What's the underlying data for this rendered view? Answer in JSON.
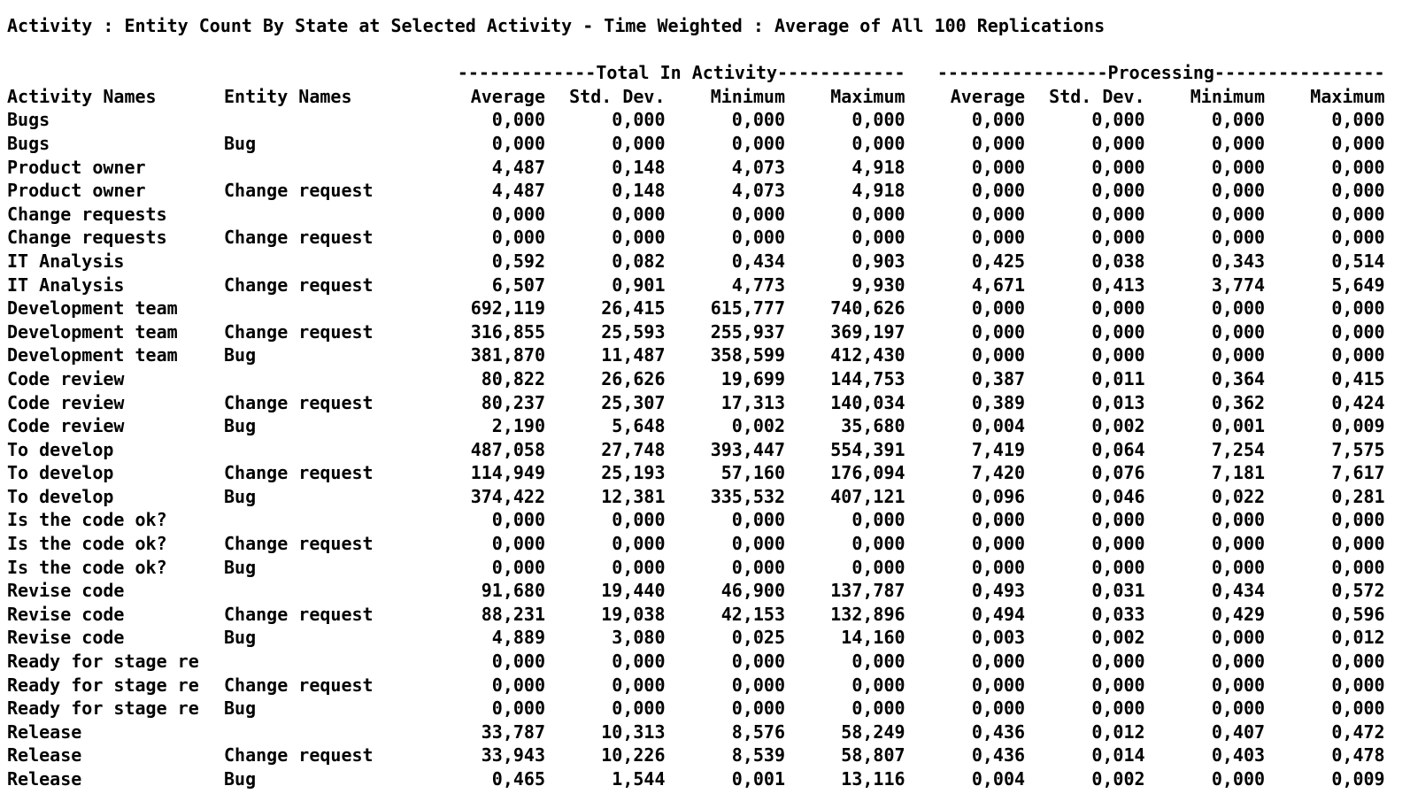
{
  "colors": {
    "background": "#ffffff",
    "text": "#000000"
  },
  "title": "Activity : Entity Count By State at Selected Activity - Time Weighted : Average of All 100 Replications",
  "table": {
    "group_headers": {
      "total_in_activity": "-------------Total In Activity------------",
      "processing": "----------------Processing----------------"
    },
    "columns": {
      "activity": "Activity Names",
      "entity": "Entity Names",
      "stats": [
        "Average",
        "Std. Dev.",
        "Minimum",
        "Maximum"
      ]
    },
    "rows": [
      {
        "activity": "Bugs",
        "entity": "",
        "total": [
          "0,000",
          "0,000",
          "0,000",
          "0,000"
        ],
        "processing": [
          "0,000",
          "0,000",
          "0,000",
          "0,000"
        ]
      },
      {
        "activity": "Bugs",
        "entity": "Bug",
        "total": [
          "0,000",
          "0,000",
          "0,000",
          "0,000"
        ],
        "processing": [
          "0,000",
          "0,000",
          "0,000",
          "0,000"
        ]
      },
      {
        "activity": "Product owner",
        "entity": "",
        "total": [
          "4,487",
          "0,148",
          "4,073",
          "4,918"
        ],
        "processing": [
          "0,000",
          "0,000",
          "0,000",
          "0,000"
        ]
      },
      {
        "activity": "Product owner",
        "entity": "Change request",
        "total": [
          "4,487",
          "0,148",
          "4,073",
          "4,918"
        ],
        "processing": [
          "0,000",
          "0,000",
          "0,000",
          "0,000"
        ]
      },
      {
        "activity": "Change requests",
        "entity": "",
        "total": [
          "0,000",
          "0,000",
          "0,000",
          "0,000"
        ],
        "processing": [
          "0,000",
          "0,000",
          "0,000",
          "0,000"
        ]
      },
      {
        "activity": "Change requests",
        "entity": "Change request",
        "total": [
          "0,000",
          "0,000",
          "0,000",
          "0,000"
        ],
        "processing": [
          "0,000",
          "0,000",
          "0,000",
          "0,000"
        ]
      },
      {
        "activity": "IT Analysis",
        "entity": "",
        "total": [
          "0,592",
          "0,082",
          "0,434",
          "0,903"
        ],
        "processing": [
          "0,425",
          "0,038",
          "0,343",
          "0,514"
        ]
      },
      {
        "activity": "IT Analysis",
        "entity": "Change request",
        "total": [
          "6,507",
          "0,901",
          "4,773",
          "9,930"
        ],
        "processing": [
          "4,671",
          "0,413",
          "3,774",
          "5,649"
        ]
      },
      {
        "activity": "Development team",
        "entity": "",
        "total": [
          "692,119",
          "26,415",
          "615,777",
          "740,626"
        ],
        "processing": [
          "0,000",
          "0,000",
          "0,000",
          "0,000"
        ]
      },
      {
        "activity": "Development team",
        "entity": "Change request",
        "total": [
          "316,855",
          "25,593",
          "255,937",
          "369,197"
        ],
        "processing": [
          "0,000",
          "0,000",
          "0,000",
          "0,000"
        ]
      },
      {
        "activity": "Development team",
        "entity": "Bug",
        "total": [
          "381,870",
          "11,487",
          "358,599",
          "412,430"
        ],
        "processing": [
          "0,000",
          "0,000",
          "0,000",
          "0,000"
        ]
      },
      {
        "activity": "Code review",
        "entity": "",
        "total": [
          "80,822",
          "26,626",
          "19,699",
          "144,753"
        ],
        "processing": [
          "0,387",
          "0,011",
          "0,364",
          "0,415"
        ]
      },
      {
        "activity": "Code review",
        "entity": "Change request",
        "total": [
          "80,237",
          "25,307",
          "17,313",
          "140,034"
        ],
        "processing": [
          "0,389",
          "0,013",
          "0,362",
          "0,424"
        ]
      },
      {
        "activity": "Code review",
        "entity": "Bug",
        "total": [
          "2,190",
          "5,648",
          "0,002",
          "35,680"
        ],
        "processing": [
          "0,004",
          "0,002",
          "0,001",
          "0,009"
        ]
      },
      {
        "activity": "To develop",
        "entity": "",
        "total": [
          "487,058",
          "27,748",
          "393,447",
          "554,391"
        ],
        "processing": [
          "7,419",
          "0,064",
          "7,254",
          "7,575"
        ]
      },
      {
        "activity": "To develop",
        "entity": "Change request",
        "total": [
          "114,949",
          "25,193",
          "57,160",
          "176,094"
        ],
        "processing": [
          "7,420",
          "0,076",
          "7,181",
          "7,617"
        ]
      },
      {
        "activity": "To develop",
        "entity": "Bug",
        "total": [
          "374,422",
          "12,381",
          "335,532",
          "407,121"
        ],
        "processing": [
          "0,096",
          "0,046",
          "0,022",
          "0,281"
        ]
      },
      {
        "activity": "Is the code ok?",
        "entity": "",
        "total": [
          "0,000",
          "0,000",
          "0,000",
          "0,000"
        ],
        "processing": [
          "0,000",
          "0,000",
          "0,000",
          "0,000"
        ]
      },
      {
        "activity": "Is the code ok?",
        "entity": "Change request",
        "total": [
          "0,000",
          "0,000",
          "0,000",
          "0,000"
        ],
        "processing": [
          "0,000",
          "0,000",
          "0,000",
          "0,000"
        ]
      },
      {
        "activity": "Is the code ok?",
        "entity": "Bug",
        "total": [
          "0,000",
          "0,000",
          "0,000",
          "0,000"
        ],
        "processing": [
          "0,000",
          "0,000",
          "0,000",
          "0,000"
        ]
      },
      {
        "activity": "Revise code",
        "entity": "",
        "total": [
          "91,680",
          "19,440",
          "46,900",
          "137,787"
        ],
        "processing": [
          "0,493",
          "0,031",
          "0,434",
          "0,572"
        ]
      },
      {
        "activity": "Revise code",
        "entity": "Change request",
        "total": [
          "88,231",
          "19,038",
          "42,153",
          "132,896"
        ],
        "processing": [
          "0,494",
          "0,033",
          "0,429",
          "0,596"
        ]
      },
      {
        "activity": "Revise code",
        "entity": "Bug",
        "total": [
          "4,889",
          "3,080",
          "0,025",
          "14,160"
        ],
        "processing": [
          "0,003",
          "0,002",
          "0,000",
          "0,012"
        ]
      },
      {
        "activity": "Ready for stage re",
        "entity": "",
        "total": [
          "0,000",
          "0,000",
          "0,000",
          "0,000"
        ],
        "processing": [
          "0,000",
          "0,000",
          "0,000",
          "0,000"
        ]
      },
      {
        "activity": "Ready for stage re",
        "entity": "Change request",
        "total": [
          "0,000",
          "0,000",
          "0,000",
          "0,000"
        ],
        "processing": [
          "0,000",
          "0,000",
          "0,000",
          "0,000"
        ]
      },
      {
        "activity": "Ready for stage re",
        "entity": "Bug",
        "total": [
          "0,000",
          "0,000",
          "0,000",
          "0,000"
        ],
        "processing": [
          "0,000",
          "0,000",
          "0,000",
          "0,000"
        ]
      },
      {
        "activity": "Release",
        "entity": "",
        "total": [
          "33,787",
          "10,313",
          "8,576",
          "58,249"
        ],
        "processing": [
          "0,436",
          "0,012",
          "0,407",
          "0,472"
        ]
      },
      {
        "activity": "Release",
        "entity": "Change request",
        "total": [
          "33,943",
          "10,226",
          "8,539",
          "58,807"
        ],
        "processing": [
          "0,436",
          "0,014",
          "0,403",
          "0,478"
        ]
      },
      {
        "activity": "Release",
        "entity": "Bug",
        "total": [
          "0,465",
          "1,544",
          "0,001",
          "13,116"
        ],
        "processing": [
          "0,004",
          "0,002",
          "0,000",
          "0,009"
        ]
      }
    ]
  }
}
